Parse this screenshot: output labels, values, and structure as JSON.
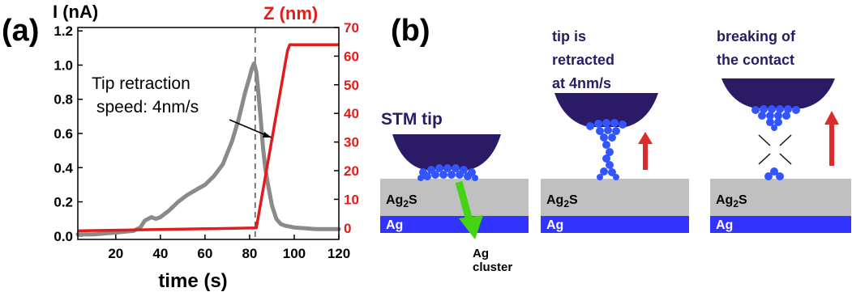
{
  "panel_a": {
    "label": "(a)",
    "annotation_line1": "Tip retraction",
    "annotation_line2": "speed: 4nm/s"
  },
  "chart_data": {
    "type": "line",
    "title": "",
    "xlabel": "time (s)",
    "ylabel": "I (nA)",
    "y2label": "Z (nm)",
    "xlim": [
      3,
      120
    ],
    "ylim": [
      -0.02,
      1.22
    ],
    "y2lim": [
      -4,
      70
    ],
    "x_ticks": [
      20,
      40,
      60,
      80,
      100,
      120
    ],
    "y_ticks": [
      "0.0",
      "0.2",
      "0.4",
      "0.6",
      "0.8",
      "1.0",
      "1.2"
    ],
    "y2_ticks": [
      "0",
      "10",
      "20",
      "30",
      "40",
      "50",
      "60",
      "70"
    ],
    "vline_x": 82.5,
    "series": [
      {
        "color": "#8a8a8a",
        "axis": "left",
        "x": [
          3,
          10,
          20,
          28,
          31,
          33,
          36,
          38,
          40,
          44,
          48,
          52,
          56,
          60,
          64,
          68,
          72,
          75,
          78,
          80,
          81,
          82,
          83,
          84,
          85,
          86,
          87,
          88,
          90,
          92,
          94,
          96,
          100,
          110,
          120
        ],
        "y": [
          0.01,
          0.01,
          0.02,
          0.03,
          0.05,
          0.09,
          0.11,
          0.1,
          0.11,
          0.15,
          0.2,
          0.24,
          0.27,
          0.3,
          0.35,
          0.42,
          0.55,
          0.68,
          0.84,
          0.93,
          0.98,
          1.01,
          0.96,
          0.83,
          0.68,
          0.52,
          0.4,
          0.32,
          0.18,
          0.1,
          0.07,
          0.06,
          0.05,
          0.04,
          0.04
        ]
      },
      {
        "color": "#e31b1b",
        "axis": "right",
        "x": [
          3,
          83,
          97,
          98,
          120
        ],
        "y": [
          -1,
          0,
          62,
          64,
          64
        ]
      }
    ]
  },
  "panel_b": {
    "label": "(b)",
    "stm_label": "STM tip",
    "step2_caption": [
      "tip is",
      "retracted",
      "at 4nm/s"
    ],
    "step3_caption": [
      "breaking of",
      "the contact"
    ],
    "ag2s_main": "Ag",
    "ag2s_sub": "2",
    "ag2s_tail": "S",
    "ag_label": "Ag",
    "cluster_line1": "Ag",
    "cluster_line2": "cluster",
    "colors": {
      "tip": "#2b1a66",
      "atoms": "#3355ff",
      "substrate": "#c0c0c0",
      "silver_layer": "#3333ff",
      "arrow_up": "#dd2a2a",
      "arrow_green": "#44d414"
    }
  }
}
